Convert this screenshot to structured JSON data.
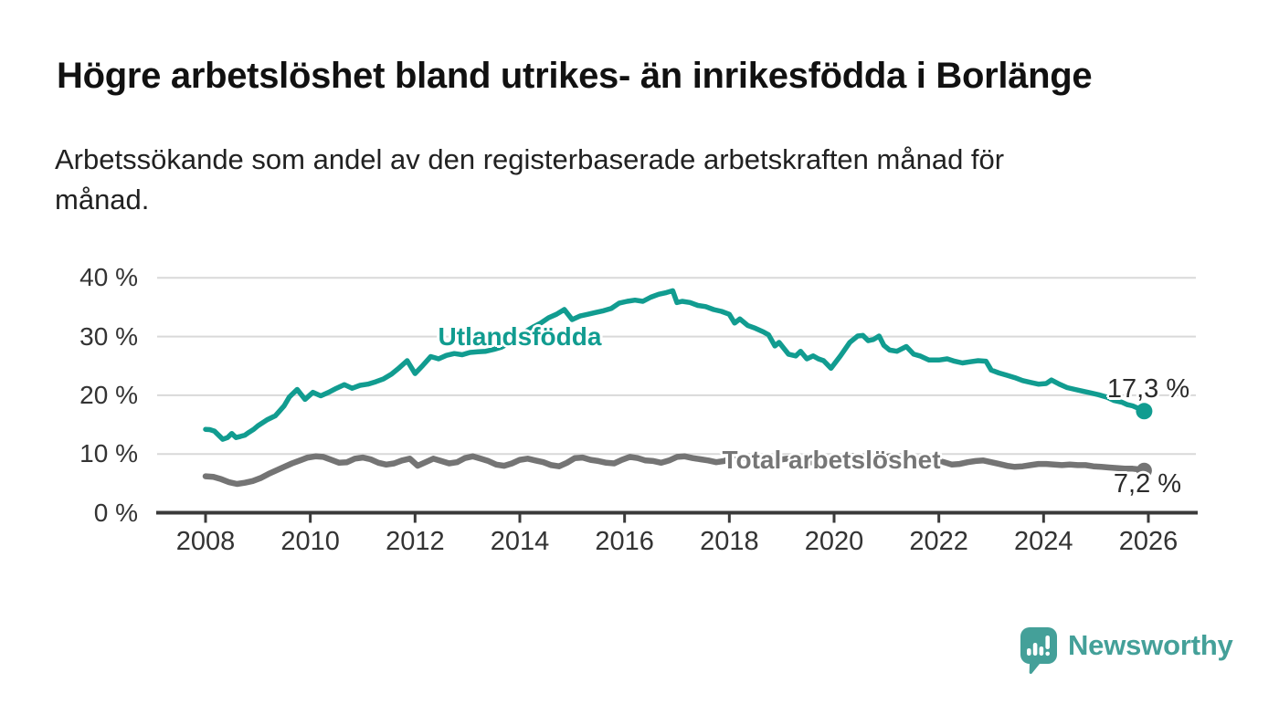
{
  "header": {
    "title": "Högre arbetslöshet bland utrikes- än inrikesfödda i Borlänge",
    "subtitle": "Arbetssökande som andel av den registerbaserade arbetskraften månad för\nmånad."
  },
  "chart_data": {
    "type": "line",
    "title": "Högre arbetslöshet bland utrikes- än inrikesfödda i Borlänge",
    "subtitle": "Arbetssökande som andel av den registerbaserade arbetskraften månad för månad.",
    "xlabel": "",
    "ylabel": "",
    "grid": "horizontal",
    "legend_position": "inline-labels-on-lines",
    "x_axis": {
      "tick_values": [
        2008,
        2010,
        2012,
        2014,
        2016,
        2018,
        2020,
        2022,
        2024,
        2026
      ],
      "range_years": [
        2008,
        2026
      ]
    },
    "y_axis": {
      "tick_values": [
        0,
        10,
        20,
        30,
        40
      ],
      "tick_labels": [
        "0 %",
        "10 %",
        "20 %",
        "30 %",
        "40 %"
      ],
      "ylim": [
        0,
        43
      ],
      "unit": "%"
    },
    "series": [
      {
        "name": "Utlandsfödda",
        "color": "#119c90",
        "end_value": 17.3,
        "end_value_label": "17,3 %",
        "points": [
          [
            2008.0,
            14.2
          ],
          [
            2008.08,
            14.15
          ],
          [
            2008.17,
            13.9
          ],
          [
            2008.25,
            13.2
          ],
          [
            2008.33,
            12.5
          ],
          [
            2008.42,
            12.8
          ],
          [
            2008.5,
            13.5
          ],
          [
            2008.58,
            12.8
          ],
          [
            2008.67,
            13.0
          ],
          [
            2008.75,
            13.2
          ],
          [
            2008.83,
            13.7
          ],
          [
            2008.92,
            14.2
          ],
          [
            2009.0,
            14.8
          ],
          [
            2009.17,
            15.8
          ],
          [
            2009.33,
            16.5
          ],
          [
            2009.5,
            18.2
          ],
          [
            2009.6,
            19.7
          ],
          [
            2009.75,
            21.0
          ],
          [
            2009.9,
            19.3
          ],
          [
            2010.05,
            20.5
          ],
          [
            2010.2,
            19.9
          ],
          [
            2010.35,
            20.5
          ],
          [
            2010.5,
            21.2
          ],
          [
            2010.65,
            21.8
          ],
          [
            2010.8,
            21.2
          ],
          [
            2010.95,
            21.7
          ],
          [
            2011.1,
            21.9
          ],
          [
            2011.25,
            22.3
          ],
          [
            2011.4,
            22.8
          ],
          [
            2011.55,
            23.6
          ],
          [
            2011.7,
            24.7
          ],
          [
            2011.85,
            25.9
          ],
          [
            2012.0,
            23.7
          ],
          [
            2012.15,
            25.1
          ],
          [
            2012.3,
            26.6
          ],
          [
            2012.45,
            26.2
          ],
          [
            2012.6,
            26.8
          ],
          [
            2012.75,
            27.1
          ],
          [
            2012.9,
            26.9
          ],
          [
            2013.05,
            27.3
          ],
          [
            2013.2,
            27.4
          ],
          [
            2013.35,
            27.5
          ],
          [
            2013.5,
            27.8
          ],
          [
            2013.65,
            28.2
          ],
          [
            2013.8,
            28.9
          ],
          [
            2013.95,
            29.8
          ],
          [
            2014.1,
            30.8
          ],
          [
            2014.25,
            31.6
          ],
          [
            2014.4,
            32.3
          ],
          [
            2014.55,
            33.2
          ],
          [
            2014.7,
            33.8
          ],
          [
            2014.85,
            34.6
          ],
          [
            2015.0,
            32.9
          ],
          [
            2015.15,
            33.5
          ],
          [
            2015.3,
            33.8
          ],
          [
            2015.45,
            34.1
          ],
          [
            2015.6,
            34.4
          ],
          [
            2015.75,
            34.8
          ],
          [
            2015.9,
            35.7
          ],
          [
            2016.05,
            36.0
          ],
          [
            2016.2,
            36.2
          ],
          [
            2016.35,
            36.0
          ],
          [
            2016.5,
            36.7
          ],
          [
            2016.65,
            37.2
          ],
          [
            2016.8,
            37.5
          ],
          [
            2016.92,
            37.8
          ],
          [
            2017.0,
            35.8
          ],
          [
            2017.1,
            36.0
          ],
          [
            2017.25,
            35.8
          ],
          [
            2017.4,
            35.3
          ],
          [
            2017.55,
            35.1
          ],
          [
            2017.7,
            34.6
          ],
          [
            2017.85,
            34.3
          ],
          [
            2018.0,
            33.8
          ],
          [
            2018.1,
            32.3
          ],
          [
            2018.2,
            33.0
          ],
          [
            2018.35,
            31.9
          ],
          [
            2018.5,
            31.4
          ],
          [
            2018.65,
            30.8
          ],
          [
            2018.75,
            30.3
          ],
          [
            2018.87,
            28.4
          ],
          [
            2018.95,
            29.0
          ],
          [
            2019.13,
            27.0
          ],
          [
            2019.27,
            26.7
          ],
          [
            2019.36,
            27.5
          ],
          [
            2019.48,
            26.2
          ],
          [
            2019.6,
            26.7
          ],
          [
            2019.7,
            26.2
          ],
          [
            2019.8,
            25.9
          ],
          [
            2019.94,
            24.6
          ],
          [
            2020.12,
            26.7
          ],
          [
            2020.3,
            29.0
          ],
          [
            2020.45,
            30.1
          ],
          [
            2020.55,
            30.2
          ],
          [
            2020.65,
            29.3
          ],
          [
            2020.75,
            29.5
          ],
          [
            2020.86,
            30.1
          ],
          [
            2020.95,
            28.5
          ],
          [
            2021.06,
            27.7
          ],
          [
            2021.2,
            27.5
          ],
          [
            2021.38,
            28.3
          ],
          [
            2021.52,
            27.0
          ],
          [
            2021.64,
            26.7
          ],
          [
            2021.81,
            26.0
          ],
          [
            2022.0,
            26.0
          ],
          [
            2022.16,
            26.2
          ],
          [
            2022.3,
            25.8
          ],
          [
            2022.45,
            25.5
          ],
          [
            2022.6,
            25.7
          ],
          [
            2022.75,
            25.9
          ],
          [
            2022.9,
            25.8
          ],
          [
            2023.0,
            24.3
          ],
          [
            2023.15,
            23.8
          ],
          [
            2023.3,
            23.4
          ],
          [
            2023.45,
            23.0
          ],
          [
            2023.6,
            22.5
          ],
          [
            2023.75,
            22.2
          ],
          [
            2023.9,
            21.9
          ],
          [
            2024.05,
            22.0
          ],
          [
            2024.15,
            22.6
          ],
          [
            2024.3,
            21.9
          ],
          [
            2024.45,
            21.3
          ],
          [
            2024.6,
            21.0
          ],
          [
            2024.75,
            20.7
          ],
          [
            2024.9,
            20.4
          ],
          [
            2025.05,
            20.1
          ],
          [
            2025.2,
            19.7
          ],
          [
            2025.35,
            19.1
          ],
          [
            2025.5,
            18.8
          ],
          [
            2025.6,
            18.4
          ],
          [
            2025.7,
            18.2
          ],
          [
            2025.8,
            17.8
          ],
          [
            2025.92,
            17.3
          ]
        ]
      },
      {
        "name": "Total arbetslöshet",
        "color": "#747474",
        "end_value": 7.2,
        "end_value_label": "7,2 %",
        "points": [
          [
            2008.0,
            6.2
          ],
          [
            2008.15,
            6.1
          ],
          [
            2008.3,
            5.7
          ],
          [
            2008.45,
            5.2
          ],
          [
            2008.6,
            4.9
          ],
          [
            2008.75,
            5.1
          ],
          [
            2008.9,
            5.4
          ],
          [
            2009.05,
            5.9
          ],
          [
            2009.2,
            6.6
          ],
          [
            2009.35,
            7.2
          ],
          [
            2009.5,
            7.8
          ],
          [
            2009.65,
            8.4
          ],
          [
            2009.8,
            8.9
          ],
          [
            2009.95,
            9.4
          ],
          [
            2010.1,
            9.6
          ],
          [
            2010.25,
            9.5
          ],
          [
            2010.4,
            9.0
          ],
          [
            2010.55,
            8.5
          ],
          [
            2010.7,
            8.6
          ],
          [
            2010.85,
            9.2
          ],
          [
            2011.0,
            9.4
          ],
          [
            2011.15,
            9.1
          ],
          [
            2011.3,
            8.5
          ],
          [
            2011.45,
            8.2
          ],
          [
            2011.6,
            8.4
          ],
          [
            2011.75,
            8.9
          ],
          [
            2011.9,
            9.2
          ],
          [
            2012.05,
            8.0
          ],
          [
            2012.2,
            8.6
          ],
          [
            2012.35,
            9.2
          ],
          [
            2012.5,
            8.8
          ],
          [
            2012.65,
            8.4
          ],
          [
            2012.8,
            8.6
          ],
          [
            2012.95,
            9.3
          ],
          [
            2013.1,
            9.6
          ],
          [
            2013.25,
            9.2
          ],
          [
            2013.4,
            8.8
          ],
          [
            2013.55,
            8.2
          ],
          [
            2013.7,
            8.0
          ],
          [
            2013.85,
            8.4
          ],
          [
            2014.0,
            9.0
          ],
          [
            2014.15,
            9.2
          ],
          [
            2014.3,
            8.9
          ],
          [
            2014.45,
            8.6
          ],
          [
            2014.6,
            8.1
          ],
          [
            2014.75,
            7.9
          ],
          [
            2014.9,
            8.5
          ],
          [
            2015.05,
            9.3
          ],
          [
            2015.2,
            9.4
          ],
          [
            2015.35,
            9.0
          ],
          [
            2015.5,
            8.8
          ],
          [
            2015.65,
            8.5
          ],
          [
            2015.8,
            8.4
          ],
          [
            2015.95,
            9.0
          ],
          [
            2016.1,
            9.5
          ],
          [
            2016.25,
            9.3
          ],
          [
            2016.4,
            8.9
          ],
          [
            2016.55,
            8.8
          ],
          [
            2016.7,
            8.5
          ],
          [
            2016.85,
            8.9
          ],
          [
            2017.0,
            9.5
          ],
          [
            2017.15,
            9.6
          ],
          [
            2017.3,
            9.3
          ],
          [
            2017.45,
            9.1
          ],
          [
            2017.6,
            8.9
          ],
          [
            2017.75,
            8.6
          ],
          [
            2017.9,
            8.8
          ],
          [
            2018.05,
            9.3
          ],
          [
            2018.2,
            9.5
          ],
          [
            2018.35,
            9.2
          ],
          [
            2018.5,
            9.0
          ],
          [
            2018.65,
            8.8
          ],
          [
            2018.8,
            8.7
          ],
          [
            2018.95,
            9.0
          ],
          [
            2019.1,
            9.2
          ],
          [
            2019.25,
            9.0
          ],
          [
            2019.4,
            8.8
          ],
          [
            2019.55,
            8.6
          ],
          [
            2019.7,
            8.5
          ],
          [
            2019.85,
            8.6
          ],
          [
            2020.0,
            8.9
          ],
          [
            2020.15,
            9.2
          ],
          [
            2020.3,
            9.6
          ],
          [
            2020.45,
            9.7
          ],
          [
            2020.6,
            9.5
          ],
          [
            2020.75,
            9.3
          ],
          [
            2020.9,
            9.4
          ],
          [
            2021.05,
            9.6
          ],
          [
            2021.2,
            9.7
          ],
          [
            2021.35,
            9.4
          ],
          [
            2021.5,
            9.2
          ],
          [
            2021.65,
            9.0
          ],
          [
            2021.8,
            8.8
          ],
          [
            2021.95,
            8.9
          ],
          [
            2022.1,
            8.6
          ],
          [
            2022.25,
            8.2
          ],
          [
            2022.4,
            8.3
          ],
          [
            2022.55,
            8.6
          ],
          [
            2022.7,
            8.8
          ],
          [
            2022.85,
            8.9
          ],
          [
            2023.0,
            8.6
          ],
          [
            2023.15,
            8.3
          ],
          [
            2023.3,
            8.0
          ],
          [
            2023.45,
            7.8
          ],
          [
            2023.6,
            7.9
          ],
          [
            2023.75,
            8.1
          ],
          [
            2023.9,
            8.3
          ],
          [
            2024.05,
            8.3
          ],
          [
            2024.2,
            8.2
          ],
          [
            2024.35,
            8.1
          ],
          [
            2024.5,
            8.2
          ],
          [
            2024.65,
            8.1
          ],
          [
            2024.8,
            8.1
          ],
          [
            2024.95,
            7.9
          ],
          [
            2025.1,
            7.8
          ],
          [
            2025.25,
            7.7
          ],
          [
            2025.4,
            7.6
          ],
          [
            2025.55,
            7.5
          ],
          [
            2025.7,
            7.5
          ],
          [
            2025.8,
            7.4
          ],
          [
            2025.92,
            7.2
          ]
        ]
      }
    ]
  },
  "branding": {
    "name": "Newsworthy",
    "icon": "speech-bubble-bar-chart-icon",
    "color": "#44a099"
  },
  "colors": {
    "background": "#ffffff",
    "grid": "#d9d9d9",
    "axis": "#3a3a3a",
    "axis_text": "#333333",
    "title_text": "#111111",
    "series_foreign_born": "#119c90",
    "series_total": "#747474"
  }
}
